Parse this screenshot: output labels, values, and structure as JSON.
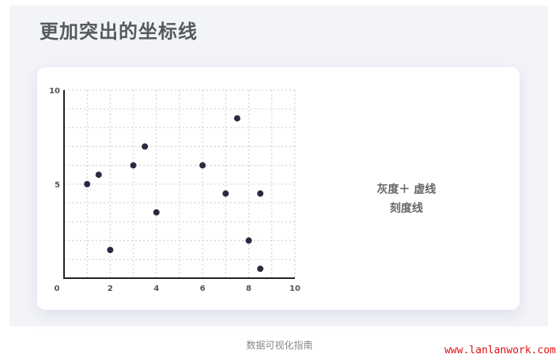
{
  "title": "更加突出的坐标线",
  "note": {
    "line1": "灰度＋ 虚线",
    "line2": "刻度线"
  },
  "caption": "数据可视化指南",
  "watermark": "www.lanlanwork.com",
  "chart_data": {
    "type": "scatter",
    "x": [
      1,
      1.5,
      2,
      3,
      3.5,
      4,
      6,
      7,
      7.5,
      8,
      8.5,
      8.5
    ],
    "y": [
      5,
      5.5,
      1.5,
      6,
      7,
      3.5,
      6,
      4.5,
      8.5,
      2,
      4.5,
      0.5
    ],
    "xlim": [
      0,
      10
    ],
    "ylim": [
      0,
      10
    ],
    "xticks": [
      "0",
      "2",
      "4",
      "6",
      "8",
      "10"
    ],
    "yticks": [
      "5",
      "10"
    ],
    "grid": "dotted, every 1 unit",
    "colors": {
      "point": "#2b2a40",
      "axis": "#222222",
      "grid": "#cccccc",
      "tick_label": "#555555"
    }
  }
}
